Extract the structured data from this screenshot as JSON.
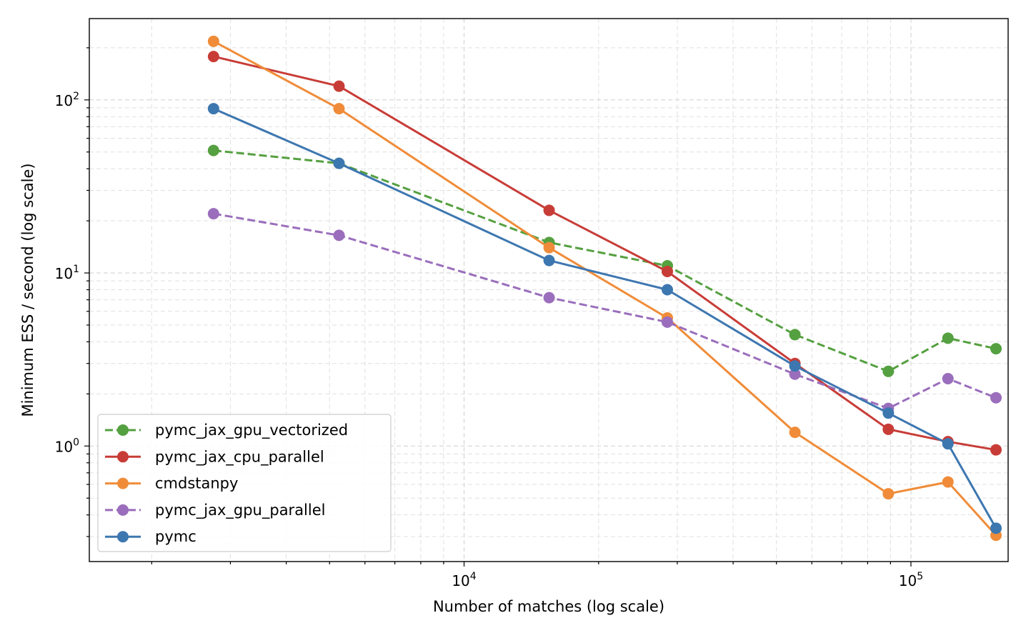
{
  "chart_data": {
    "type": "line",
    "title": "",
    "xlabel": "Number of matches (log scale)",
    "ylabel": "Minimum ESS / second (log scale)",
    "xscale": "log",
    "yscale": "log",
    "xlim": [
      1450,
      165000
    ],
    "ylim": [
      0.215,
      295
    ],
    "x_ticks": [
      {
        "base": "10",
        "exp": "4",
        "value": 10000
      },
      {
        "base": "10",
        "exp": "5",
        "value": 100000
      }
    ],
    "y_ticks": [
      {
        "base": "10",
        "exp": "0",
        "value": 1
      },
      {
        "base": "10",
        "exp": "1",
        "value": 10
      },
      {
        "base": "10",
        "exp": "2",
        "value": 100
      }
    ],
    "grid": "both (major and minor, dashed)",
    "legend_position": "lower-left",
    "x": [
      2750,
      5250,
      15500,
      28500,
      55000,
      89000,
      121000,
      155000
    ],
    "series": [
      {
        "name": "pymc_jax_gpu_vectorized",
        "color": "#55a040",
        "dashed": true,
        "values": [
          51,
          43,
          15,
          11,
          4.4,
          2.7,
          4.2,
          3.65
        ]
      },
      {
        "name": "pymc_jax_cpu_parallel",
        "color": "#c83c37",
        "dashed": false,
        "values": [
          178,
          120,
          23,
          10.2,
          3.0,
          1.25,
          1.06,
          0.95
        ]
      },
      {
        "name": "cmdstanpy",
        "color": "#f08c39",
        "dashed": false,
        "values": [
          218,
          89,
          14,
          5.5,
          1.2,
          0.53,
          0.62,
          0.305
        ]
      },
      {
        "name": "pymc_jax_gpu_parallel",
        "color": "#9a6ebc",
        "dashed": true,
        "values": [
          22,
          16.5,
          7.2,
          5.2,
          2.6,
          1.65,
          2.45,
          1.9
        ]
      },
      {
        "name": "pymc",
        "color": "#3d77b0",
        "dashed": false,
        "values": [
          89,
          43,
          11.8,
          8.0,
          2.9,
          1.55,
          1.03,
          0.335
        ]
      }
    ]
  }
}
